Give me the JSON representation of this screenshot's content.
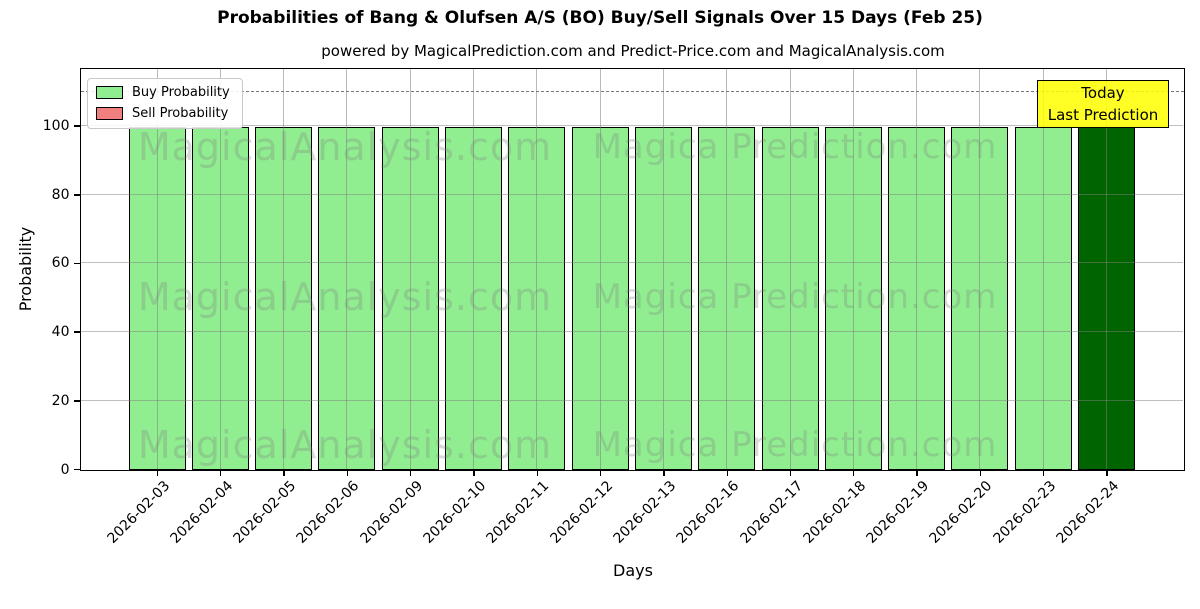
{
  "figure": {
    "title": "Probabilities of Bang & Olufsen A/S (BO) Buy/Sell Signals Over 15 Days (Feb 25)",
    "subtitle": "powered by MagicalPrediction.com and Predict-Price.com and MagicalAnalysis.com"
  },
  "chart_data": {
    "type": "bar",
    "title": "Probabilities of Bang & Olufsen A/S (BO) Buy/Sell Signals Over 15 Days (Feb 25)",
    "subtitle": "powered by MagicalPrediction.com and Predict-Price.com and MagicalAnalysis.com",
    "xlabel": "Days",
    "ylabel": "Probability",
    "categories": [
      "2026-02-03",
      "2026-02-04",
      "2026-02-05",
      "2026-02-06",
      "2026-02-09",
      "2026-02-10",
      "2026-02-11",
      "2026-02-12",
      "2026-02-13",
      "2026-02-16",
      "2026-02-17",
      "2026-02-18",
      "2026-02-19",
      "2026-02-20",
      "2026-02-23",
      "2026-02-24"
    ],
    "series": [
      {
        "name": "Buy Probability",
        "color": "#90EE90",
        "values": [
          100,
          100,
          100,
          100,
          100,
          100,
          100,
          100,
          100,
          100,
          100,
          100,
          100,
          100,
          100,
          100
        ]
      },
      {
        "name": "Sell Probability",
        "color": "#F08080",
        "values": [
          0,
          0,
          0,
          0,
          0,
          0,
          0,
          0,
          0,
          0,
          0,
          0,
          0,
          0,
          0,
          0
        ]
      }
    ],
    "highlight": {
      "index": 15,
      "category": "2026-02-24",
      "color": "#006400",
      "annotation": [
        "Today",
        "Last Prediction"
      ],
      "annotation_bg": "#FFFF00"
    },
    "ylim": [
      0,
      116.5
    ],
    "yticks": [
      0,
      20,
      40,
      60,
      80,
      100
    ],
    "dashed_line_y": 110,
    "grid": true,
    "legend_position": "upper left",
    "bar_edge_color": "#000000"
  },
  "legend": {
    "items": [
      {
        "label": "Buy Probability",
        "color": "#90EE90"
      },
      {
        "label": "Sell Probability",
        "color": "#F08080"
      }
    ]
  },
  "annotation": {
    "line1": "Today",
    "line2": "Last Prediction",
    "bg": "#FFFF00"
  },
  "watermarks": {
    "left_text": "MagicalAnalysis.com",
    "right_text": "Magica Prediction.com",
    "row_count": 3
  }
}
